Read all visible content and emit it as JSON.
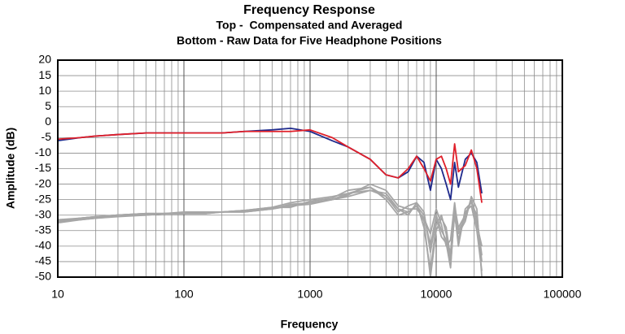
{
  "chart_data": {
    "type": "line",
    "title": "Frequency Response",
    "subtitle": [
      "Top -  Compensated and Averaged",
      "Bottom - Raw Data for Five Headphone Positions"
    ],
    "xlabel": "Frequency",
    "ylabel": "Amplitude (dB)",
    "xscale": "log",
    "grid": true,
    "minor_grid": true,
    "xlim": [
      10,
      100000
    ],
    "xticks": [
      10,
      100,
      1000,
      10000,
      100000
    ],
    "ylim": [
      -50,
      20
    ],
    "yticks": [
      -50,
      -45,
      -40,
      -35,
      -30,
      -25,
      -20,
      -15,
      -10,
      -5,
      0,
      5,
      10,
      15,
      20
    ],
    "x": [
      10,
      15,
      20,
      30,
      50,
      70,
      100,
      150,
      200,
      300,
      500,
      700,
      1000,
      1500,
      2000,
      3000,
      4000,
      5000,
      6000,
      7000,
      8000,
      9000,
      10000,
      11000,
      12000,
      13000,
      14000,
      15000,
      17000,
      19000,
      21000,
      23000
    ],
    "series": [
      {
        "color": "#a6a6a6",
        "values": [
          -32,
          -31,
          -30.5,
          -30,
          -29.5,
          -29.5,
          -29.5,
          -29,
          -29,
          -29,
          -28,
          -27,
          -26,
          -25,
          -24,
          -22,
          -23,
          -28,
          -29,
          -27,
          -30,
          -40,
          -30,
          -35,
          -38,
          -42,
          -27,
          -34,
          -30,
          -25,
          -33,
          -40
        ]
      },
      {
        "color": "#a6a6a6",
        "values": [
          -32.5,
          -31.5,
          -31,
          -30.5,
          -30,
          -29.5,
          -29.5,
          -29.5,
          -29,
          -28.5,
          -27.5,
          -26,
          -25,
          -24,
          -23,
          -21,
          -24,
          -29,
          -27,
          -26,
          -34,
          -48,
          -33,
          -30,
          -36,
          -46,
          -29,
          -40,
          -28,
          -26,
          -30,
          -45
        ]
      },
      {
        "color": "#a6a6a6",
        "values": [
          -31.5,
          -31,
          -30.5,
          -30,
          -29.5,
          -29.5,
          -29,
          -29,
          -29,
          -28.5,
          -28,
          -27,
          -26.5,
          -25,
          -23.5,
          -20,
          -22,
          -27,
          -28,
          -28,
          -31,
          -36,
          -28,
          -33,
          -40,
          -38,
          -26,
          -36,
          -32,
          -24,
          -28,
          -50
        ]
      },
      {
        "color": "#a6a6a6",
        "values": [
          -32,
          -31,
          -30.5,
          -30,
          -30,
          -29.5,
          -29.5,
          -29,
          -29,
          -28.5,
          -27.5,
          -27.5,
          -25.5,
          -24.5,
          -22,
          -21,
          -25,
          -30,
          -29,
          -27,
          -32,
          -50,
          -35,
          -31,
          -34,
          -44,
          -30,
          -38,
          -29,
          -27,
          -35,
          -48
        ]
      },
      {
        "color": "#a6a6a6",
        "values": [
          -32,
          -31.5,
          -31,
          -30,
          -29.5,
          -29.5,
          -29.5,
          -29.5,
          -29,
          -29,
          -28,
          -26.5,
          -26,
          -25,
          -23,
          -22,
          -24,
          -28,
          -30,
          -26,
          -29,
          -42,
          -31,
          -37,
          -39,
          -47,
          -28,
          -35,
          -31,
          -25,
          -31,
          -43
        ]
      },
      {
        "color": "#1f2a8c",
        "values": [
          -6,
          -5,
          -4.5,
          -4,
          -3.5,
          -3.5,
          -3.5,
          -3.5,
          -3.5,
          -3,
          -2.5,
          -2,
          -3,
          -6,
          -8,
          -12,
          -17,
          -18,
          -16,
          -11,
          -13,
          -22,
          -12,
          -15,
          -20,
          -25,
          -13,
          -21,
          -12,
          -10,
          -13,
          -23
        ]
      },
      {
        "color": "#e0202a",
        "values": [
          -5.5,
          -5,
          -4.5,
          -4,
          -3.5,
          -3.5,
          -3.5,
          -3.5,
          -3.5,
          -3,
          -3,
          -3,
          -2.5,
          -5,
          -8,
          -12,
          -17,
          -18,
          -15,
          -11,
          -15,
          -19,
          -12,
          -11,
          -15,
          -20,
          -7,
          -16,
          -14,
          -9,
          -15,
          -26
        ]
      }
    ]
  }
}
